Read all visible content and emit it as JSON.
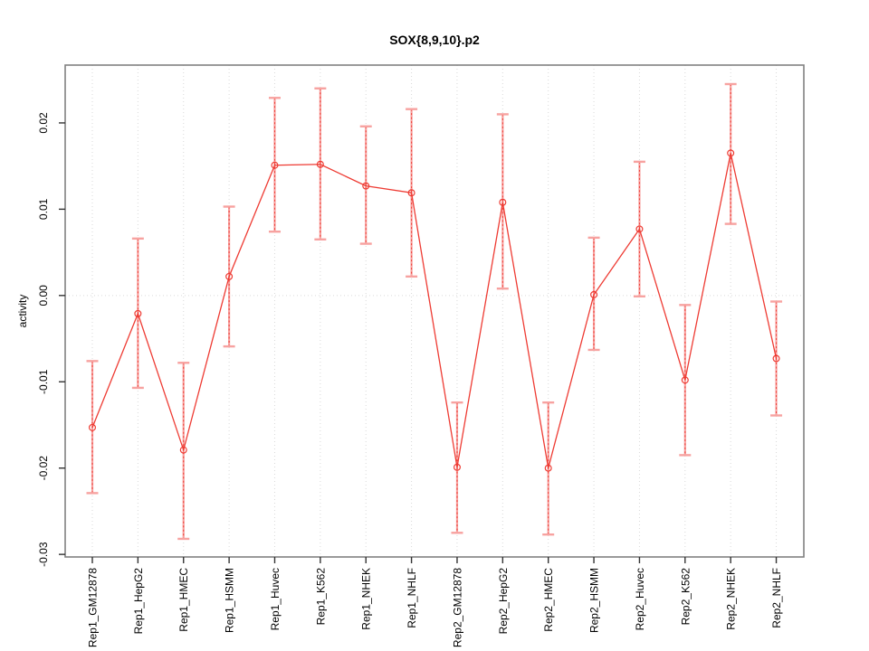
{
  "title": "SOX{8,9,10}.p2",
  "chart_data": {
    "type": "line",
    "title": "SOX{8,9,10}.p2",
    "xlabel": "",
    "ylabel": "activity",
    "legend_position": "none",
    "grid": "dotted vertical gridline per category plus dotted horizontal line at y=0",
    "categories": [
      "Rep1_GM12878",
      "Rep1_HepG2",
      "Rep1_HMEC",
      "Rep1_HSMM",
      "Rep1_Huvec",
      "Rep1_K562",
      "Rep1_NHEK",
      "Rep1_NHLF",
      "Rep2_GM12878",
      "Rep2_HepG2",
      "Rep2_HMEC",
      "Rep2_HSMM",
      "Rep2_Huvec",
      "Rep2_K562",
      "Rep2_NHEK",
      "Rep2_NHLF"
    ],
    "series": [
      {
        "name": "activity",
        "values": [
          -0.0153,
          -0.0021,
          -0.0179,
          0.0022,
          0.0151,
          0.0152,
          0.0127,
          0.0119,
          -0.0199,
          0.0108,
          -0.02,
          0.0001,
          0.0077,
          -0.0098,
          0.0165,
          -0.0073
        ]
      }
    ],
    "error_high": [
      -0.0076,
      0.0066,
      -0.0078,
      0.0103,
      0.0229,
      0.024,
      0.0196,
      0.0216,
      -0.0124,
      0.021,
      -0.0124,
      0.0067,
      0.0155,
      -0.0011,
      0.0245,
      -0.0007
    ],
    "error_low": [
      -0.0229,
      -0.0107,
      -0.0282,
      -0.0059,
      0.0074,
      0.0065,
      0.006,
      0.0022,
      -0.0275,
      0.0008,
      -0.0277,
      -0.0063,
      -0.0001,
      -0.0185,
      0.0083,
      -0.0139
    ],
    "ylim": [
      -0.0303,
      0.0267
    ],
    "yticks": [
      0.02,
      0.01,
      0.0,
      -0.01,
      -0.02,
      -0.03
    ],
    "colors": {
      "line": "#ee3b33",
      "point_stroke": "#ee3b33",
      "error_bar": "#f7a2a0",
      "error_dash": "#ee3b33",
      "grid": "#d9d9d9",
      "box": "#808080",
      "tick": "#333333",
      "text": "#000000",
      "background": "#ffffff"
    }
  }
}
